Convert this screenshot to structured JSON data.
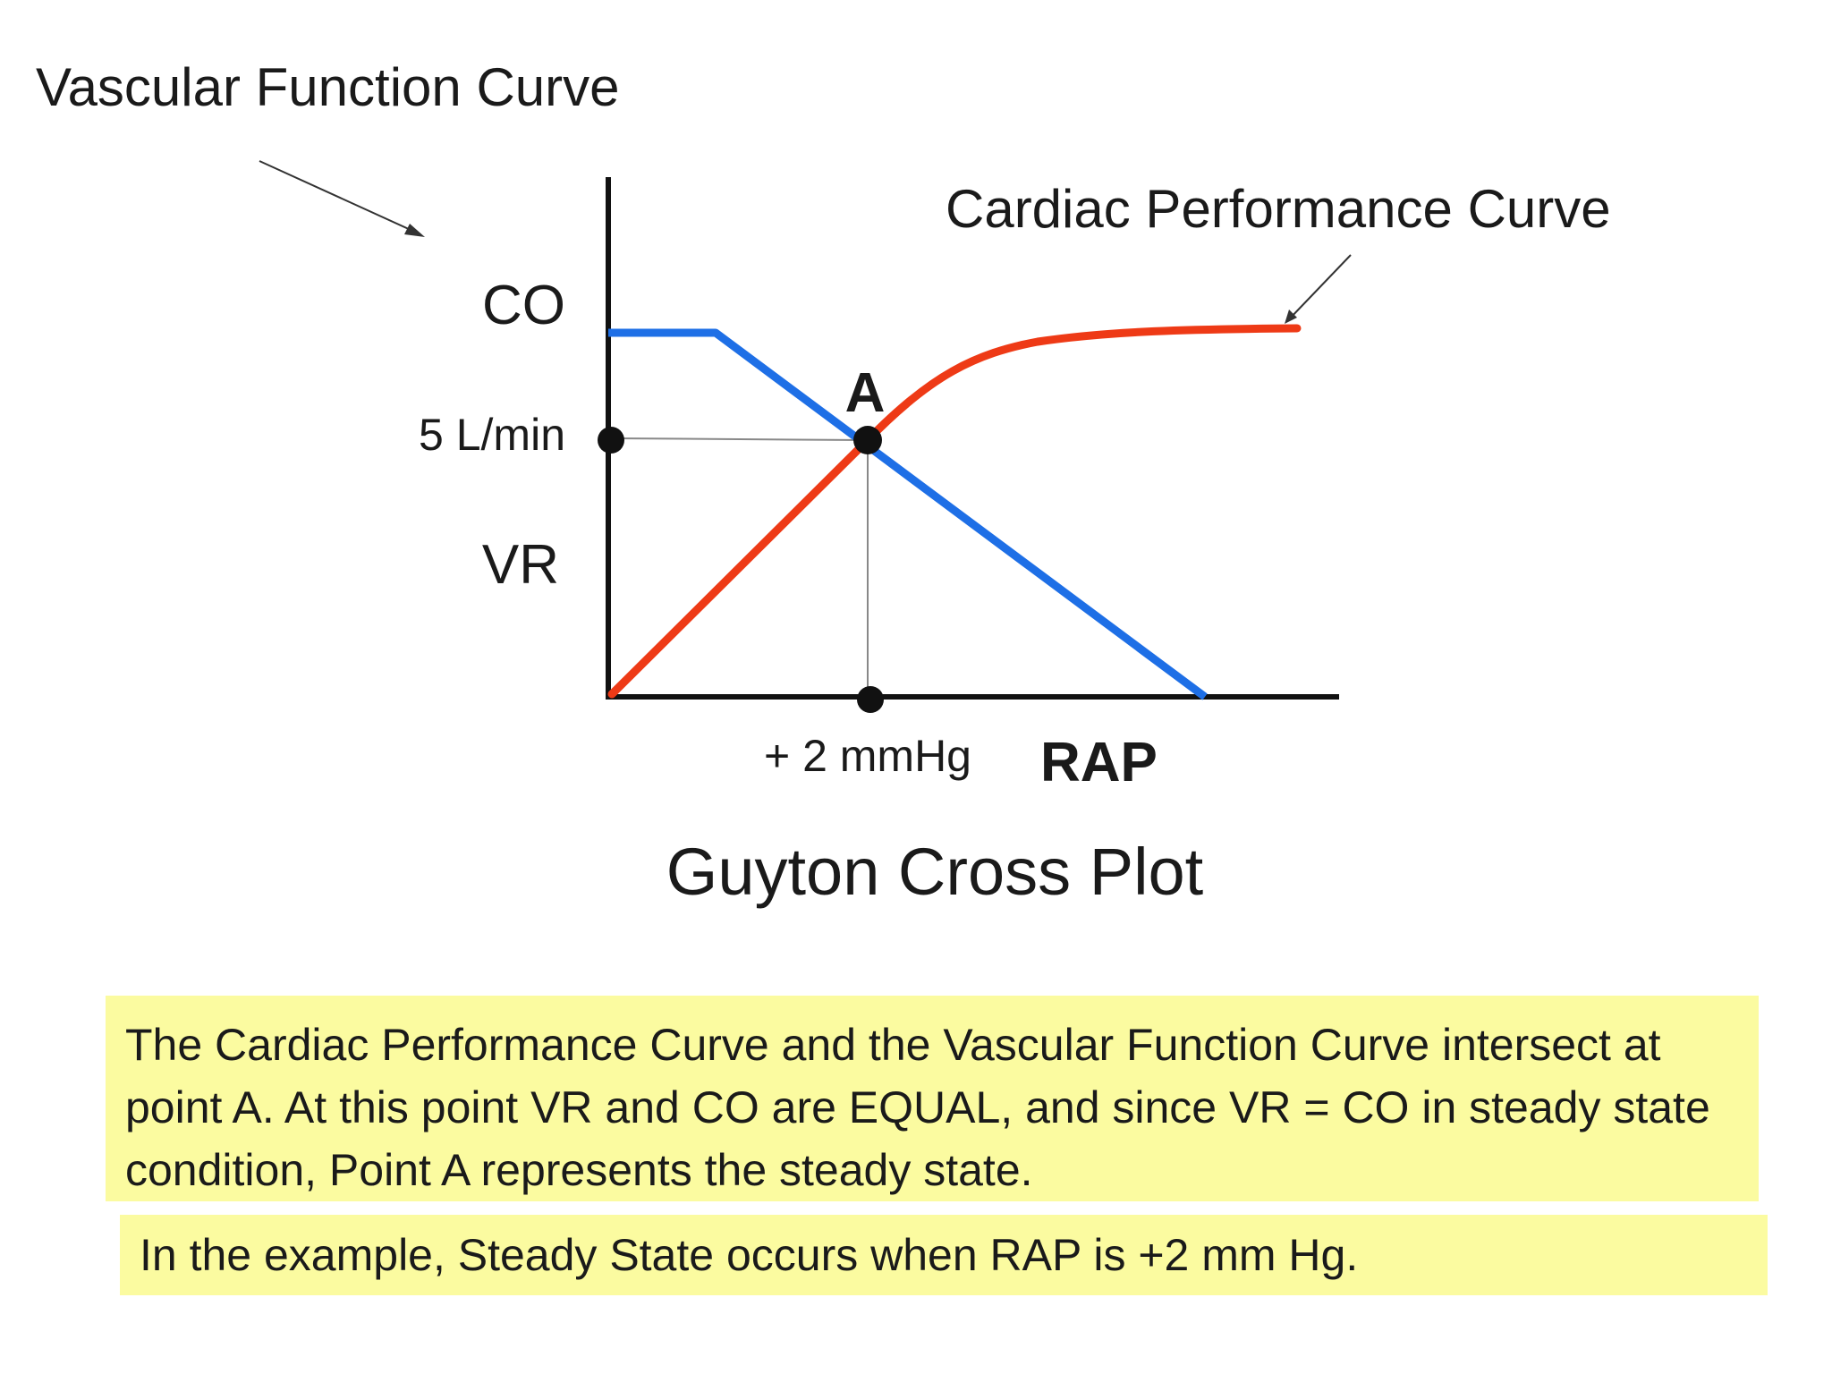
{
  "labels": {
    "vascular_function_curve": "Vascular Function Curve",
    "cardiac_performance_curve": "Cardiac Performance Curve",
    "y_axis_top": "CO",
    "y_axis_bottom": "VR",
    "y_tick": "5 L/min",
    "x_tick": "+ 2 mmHg",
    "x_axis": "RAP",
    "point": "A",
    "caption": "Guyton Cross Plot"
  },
  "notes": {
    "paragraph": "The Cardiac Performance Curve and the Vascular Function Curve intersect at point A. At this point VR and CO are EQUAL, and since VR = CO in steady state condition, Point A represents the steady state.",
    "example": "In the example, Steady State occurs when RAP is +2 mm Hg."
  },
  "colors": {
    "vascular_curve": "#1e6fe6",
    "cardiac_curve": "#ee3a16",
    "axes": "#111111",
    "note_background": "#fbfba0"
  }
}
